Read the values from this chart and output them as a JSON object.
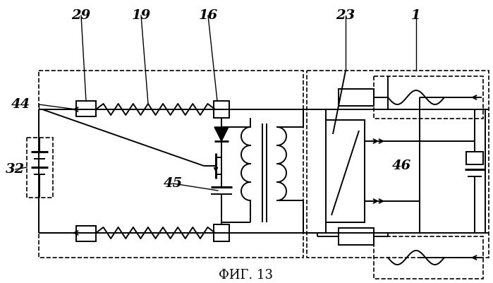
{
  "title": "ФИГ. 13",
  "bg_color": "#ffffff",
  "figsize": [
    6.99,
    4.01
  ],
  "dpi": 100,
  "lw": 1.4
}
